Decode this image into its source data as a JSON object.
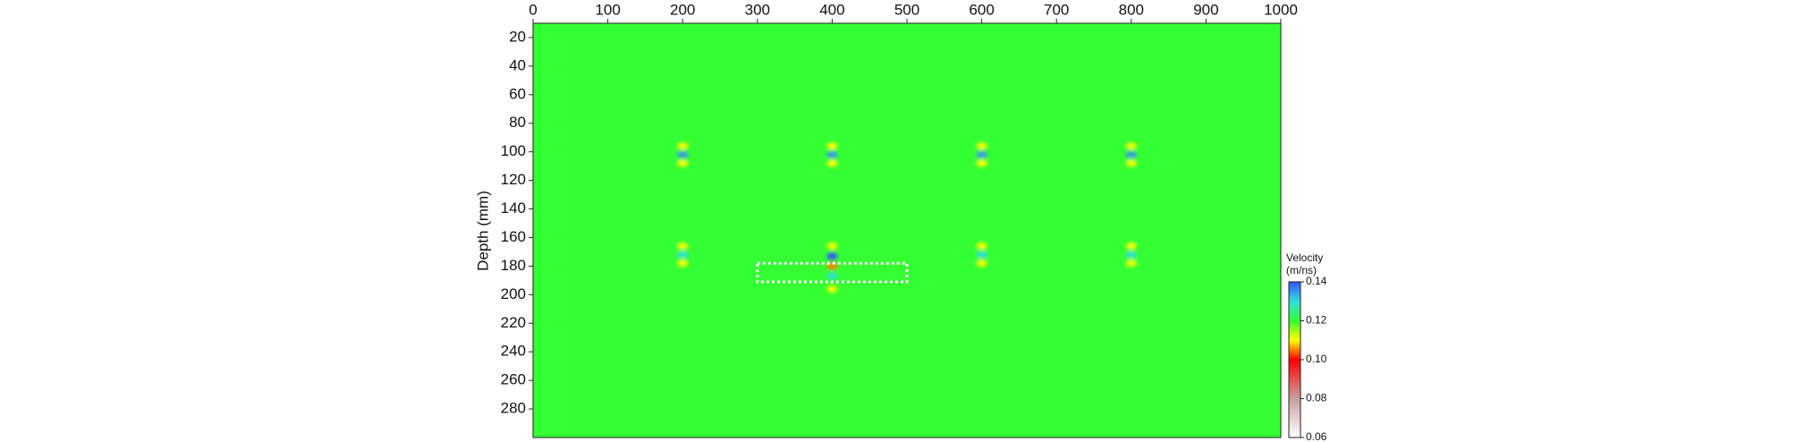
{
  "chart_data": {
    "type": "heatmap",
    "ylabel": "Depth (mm)",
    "xlim": [
      0,
      1000
    ],
    "xticks": [
      0,
      100,
      200,
      300,
      400,
      500,
      600,
      700,
      800,
      900,
      1000
    ],
    "ylim": [
      10,
      300
    ],
    "yticks": [
      20,
      40,
      60,
      80,
      100,
      120,
      140,
      160,
      180,
      200,
      220,
      240,
      260,
      280
    ],
    "y_inverted": true,
    "x_axis_position": "top",
    "background_value": 0.12,
    "colorscale": [
      [
        0.06,
        "#ffffff"
      ],
      [
        0.08,
        "#c8a0a0"
      ],
      [
        0.1,
        "#ff0000"
      ],
      [
        0.11,
        "#ffff00"
      ],
      [
        0.12,
        "#33ff33"
      ],
      [
        0.13,
        "#33dddd"
      ],
      [
        0.14,
        "#3355ff"
      ]
    ],
    "colorbar_label": [
      "Velocity",
      "(m/ns)"
    ],
    "clim": [
      0.06,
      0.14
    ],
    "cticks": [
      0.06,
      0.08,
      {
        "value": 0.1,
        "label": "0.10"
      },
      0.12,
      0.14
    ],
    "features": [
      {
        "x": 200,
        "y": 96,
        "value": 0.11
      },
      {
        "x": 200,
        "y": 102,
        "value": 0.135
      },
      {
        "x": 200,
        "y": 108,
        "value": 0.11
      },
      {
        "x": 400,
        "y": 96,
        "value": 0.11
      },
      {
        "x": 400,
        "y": 102,
        "value": 0.135
      },
      {
        "x": 400,
        "y": 108,
        "value": 0.11
      },
      {
        "x": 600,
        "y": 96,
        "value": 0.11
      },
      {
        "x": 600,
        "y": 102,
        "value": 0.135
      },
      {
        "x": 600,
        "y": 108,
        "value": 0.11
      },
      {
        "x": 800,
        "y": 96,
        "value": 0.11
      },
      {
        "x": 800,
        "y": 102,
        "value": 0.135
      },
      {
        "x": 800,
        "y": 108,
        "value": 0.11
      },
      {
        "x": 200,
        "y": 166,
        "value": 0.11
      },
      {
        "x": 200,
        "y": 172,
        "value": 0.13
      },
      {
        "x": 200,
        "y": 178,
        "value": 0.11
      },
      {
        "x": 600,
        "y": 166,
        "value": 0.11
      },
      {
        "x": 600,
        "y": 172,
        "value": 0.13
      },
      {
        "x": 600,
        "y": 178,
        "value": 0.11
      },
      {
        "x": 800,
        "y": 166,
        "value": 0.11
      },
      {
        "x": 800,
        "y": 172,
        "value": 0.13
      },
      {
        "x": 800,
        "y": 178,
        "value": 0.11
      },
      {
        "x": 400,
        "y": 166,
        "value": 0.11
      },
      {
        "x": 400,
        "y": 173,
        "value": 0.14
      },
      {
        "x": 400,
        "y": 180,
        "value": 0.105
      },
      {
        "x": 400,
        "y": 187,
        "value": 0.13
      },
      {
        "x": 400,
        "y": 196,
        "value": 0.11
      }
    ],
    "annotation_box": {
      "x": [
        300,
        500
      ],
      "y": [
        178,
        191
      ],
      "color": "#ffffff"
    }
  }
}
